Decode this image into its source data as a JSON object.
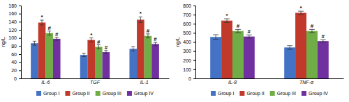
{
  "chart_data": [
    {
      "type": "bar",
      "categories": [
        "IL-6",
        "TGF",
        "IL-1"
      ],
      "ylabel": "ng/L",
      "ylim": [
        0,
        180
      ],
      "yticks": [
        0,
        20,
        40,
        60,
        80,
        100,
        120,
        140,
        160,
        180
      ],
      "legend": "bottom",
      "series": [
        {
          "name": "Group I",
          "color": "#4472c4",
          "values": [
            87,
            58,
            73
          ],
          "errors": [
            5,
            4,
            5
          ]
        },
        {
          "name": "Group II",
          "color": "#c0392b",
          "values": [
            138,
            95,
            145
          ],
          "errors": [
            6,
            5,
            7
          ],
          "annotations": [
            "*",
            "*",
            "*"
          ]
        },
        {
          "name": "Group III",
          "color": "#70ad47",
          "values": [
            112,
            78,
            105
          ],
          "errors": [
            5,
            5,
            5
          ],
          "annotations": [
            "#",
            "#",
            "#"
          ]
        },
        {
          "name": "Group IV",
          "color": "#7030a0",
          "values": [
            98,
            65,
            85
          ],
          "errors": [
            4,
            4,
            4
          ],
          "annotations": [
            "#",
            "#",
            "#"
          ]
        }
      ]
    },
    {
      "type": "bar",
      "categories": [
        "IL-8",
        "TNF-α"
      ],
      "ylabel": "ng/L",
      "ylim": [
        0,
        800
      ],
      "yticks": [
        0,
        100,
        200,
        300,
        400,
        500,
        600,
        700,
        800
      ],
      "legend": "bottom",
      "series": [
        {
          "name": "Group I",
          "color": "#4472c4",
          "values": [
            455,
            340
          ],
          "errors": [
            25,
            20
          ]
        },
        {
          "name": "Group II",
          "color": "#c0392b",
          "values": [
            635,
            720
          ],
          "errors": [
            20,
            18
          ],
          "annotations": [
            "*",
            "*"
          ]
        },
        {
          "name": "Group III",
          "color": "#70ad47",
          "values": [
            520,
            520
          ],
          "errors": [
            18,
            18
          ],
          "annotations": [
            "#",
            "#"
          ]
        },
        {
          "name": "Group IV",
          "color": "#7030a0",
          "values": [
            460,
            410
          ],
          "errors": [
            18,
            15
          ],
          "annotations": [
            "#",
            "#"
          ]
        }
      ]
    }
  ]
}
